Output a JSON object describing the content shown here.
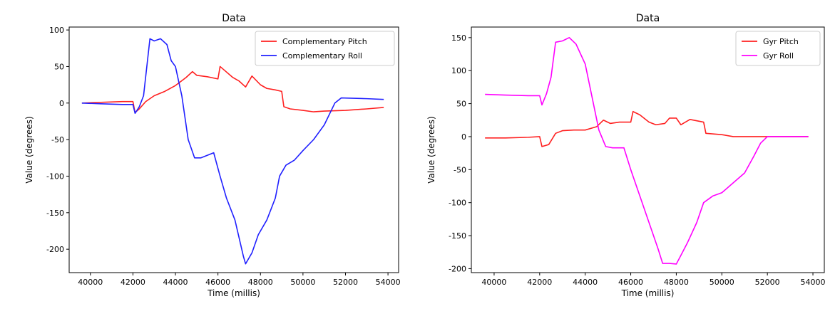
{
  "chart_data": [
    {
      "type": "line",
      "title": "Data",
      "xlabel": "Time (millis)",
      "ylabel": "Value (degrees)",
      "xlim": [
        39000,
        54500
      ],
      "ylim": [
        -232,
        104
      ],
      "xticks": [
        40000,
        42000,
        44000,
        46000,
        48000,
        50000,
        52000,
        54000
      ],
      "yticks": [
        100,
        50,
        0,
        -50,
        -100,
        -150,
        -200
      ],
      "grid": false,
      "legend": "upper right",
      "series": [
        {
          "name": "Complementary Pitch",
          "color": "#ff2020",
          "points": [
            [
              39600,
              0
            ],
            [
              40500,
              1
            ],
            [
              41500,
              2
            ],
            [
              42000,
              2
            ],
            [
              42100,
              -13
            ],
            [
              42300,
              -8
            ],
            [
              42600,
              2
            ],
            [
              43000,
              10
            ],
            [
              43500,
              16
            ],
            [
              44000,
              24
            ],
            [
              44500,
              35
            ],
            [
              44800,
              43
            ],
            [
              45000,
              38
            ],
            [
              45500,
              36
            ],
            [
              46000,
              33
            ],
            [
              46100,
              50
            ],
            [
              46300,
              45
            ],
            [
              46700,
              35
            ],
            [
              47000,
              30
            ],
            [
              47300,
              22
            ],
            [
              47600,
              37
            ],
            [
              48000,
              25
            ],
            [
              48300,
              20
            ],
            [
              48700,
              18
            ],
            [
              49000,
              16
            ],
            [
              49100,
              -5
            ],
            [
              49400,
              -8
            ],
            [
              50000,
              -10
            ],
            [
              50500,
              -12
            ],
            [
              51000,
              -11
            ],
            [
              52000,
              -10
            ],
            [
              53000,
              -8
            ],
            [
              53800,
              -6
            ]
          ]
        },
        {
          "name": "Complementary Roll",
          "color": "#2020ff",
          "points": [
            [
              39600,
              0
            ],
            [
              40500,
              -1
            ],
            [
              41500,
              -2
            ],
            [
              42000,
              -2
            ],
            [
              42100,
              -14
            ],
            [
              42300,
              -5
            ],
            [
              42500,
              10
            ],
            [
              42800,
              88
            ],
            [
              43000,
              85
            ],
            [
              43300,
              88
            ],
            [
              43600,
              80
            ],
            [
              43800,
              58
            ],
            [
              44000,
              50
            ],
            [
              44300,
              10
            ],
            [
              44600,
              -50
            ],
            [
              44900,
              -75
            ],
            [
              45200,
              -75
            ],
            [
              45800,
              -68
            ],
            [
              46100,
              -100
            ],
            [
              46400,
              -130
            ],
            [
              46800,
              -160
            ],
            [
              47200,
              -210
            ],
            [
              47300,
              -220
            ],
            [
              47600,
              -205
            ],
            [
              47900,
              -180
            ],
            [
              48300,
              -160
            ],
            [
              48700,
              -130
            ],
            [
              48900,
              -100
            ],
            [
              49200,
              -85
            ],
            [
              49600,
              -78
            ],
            [
              50000,
              -65
            ],
            [
              50500,
              -50
            ],
            [
              51000,
              -30
            ],
            [
              51500,
              0
            ],
            [
              51800,
              7
            ],
            [
              53000,
              6
            ],
            [
              53800,
              5
            ]
          ]
        }
      ]
    },
    {
      "type": "line",
      "title": "Data",
      "xlabel": "Time (millis)",
      "ylabel": "Value (degrees)",
      "xlim": [
        39000,
        54500
      ],
      "ylim": [
        -206,
        166
      ],
      "xticks": [
        40000,
        42000,
        44000,
        46000,
        48000,
        50000,
        52000,
        54000
      ],
      "yticks": [
        150,
        100,
        50,
        0,
        -50,
        -100,
        -150,
        -200
      ],
      "grid": false,
      "legend": "upper right",
      "series": [
        {
          "name": "Gyr Pitch",
          "color": "#ff2020",
          "points": [
            [
              39600,
              -2
            ],
            [
              40500,
              -2
            ],
            [
              41500,
              -1
            ],
            [
              42000,
              0
            ],
            [
              42100,
              -15
            ],
            [
              42400,
              -12
            ],
            [
              42700,
              5
            ],
            [
              43000,
              9
            ],
            [
              43500,
              10
            ],
            [
              44000,
              10
            ],
            [
              44500,
              15
            ],
            [
              44800,
              25
            ],
            [
              45100,
              20
            ],
            [
              45500,
              22
            ],
            [
              46000,
              22
            ],
            [
              46100,
              38
            ],
            [
              46400,
              33
            ],
            [
              46800,
              22
            ],
            [
              47100,
              18
            ],
            [
              47500,
              20
            ],
            [
              47700,
              28
            ],
            [
              48000,
              28
            ],
            [
              48200,
              18
            ],
            [
              48600,
              26
            ],
            [
              49200,
              22
            ],
            [
              49300,
              5
            ],
            [
              50000,
              3
            ],
            [
              50500,
              0
            ],
            [
              51000,
              0
            ],
            [
              52000,
              0
            ],
            [
              53000,
              0
            ],
            [
              53800,
              0
            ]
          ]
        },
        {
          "name": "Gyr Roll",
          "color": "#ff00ff",
          "points": [
            [
              39600,
              64
            ],
            [
              40500,
              63
            ],
            [
              41500,
              62
            ],
            [
              42000,
              62
            ],
            [
              42100,
              48
            ],
            [
              42300,
              65
            ],
            [
              42500,
              90
            ],
            [
              42700,
              143
            ],
            [
              43000,
              145
            ],
            [
              43300,
              150
            ],
            [
              43600,
              140
            ],
            [
              44000,
              110
            ],
            [
              44300,
              60
            ],
            [
              44600,
              10
            ],
            [
              44900,
              -15
            ],
            [
              45200,
              -17
            ],
            [
              45700,
              -17
            ],
            [
              46000,
              -50
            ],
            [
              46400,
              -90
            ],
            [
              46800,
              -130
            ],
            [
              47200,
              -170
            ],
            [
              47400,
              -192
            ],
            [
              47700,
              -192
            ],
            [
              48000,
              -193
            ],
            [
              48200,
              -180
            ],
            [
              48500,
              -160
            ],
            [
              48900,
              -130
            ],
            [
              49200,
              -100
            ],
            [
              49600,
              -90
            ],
            [
              50000,
              -85
            ],
            [
              50500,
              -70
            ],
            [
              51000,
              -55
            ],
            [
              51400,
              -30
            ],
            [
              51700,
              -10
            ],
            [
              52000,
              0
            ],
            [
              53000,
              0
            ],
            [
              53800,
              0
            ]
          ]
        }
      ]
    }
  ]
}
